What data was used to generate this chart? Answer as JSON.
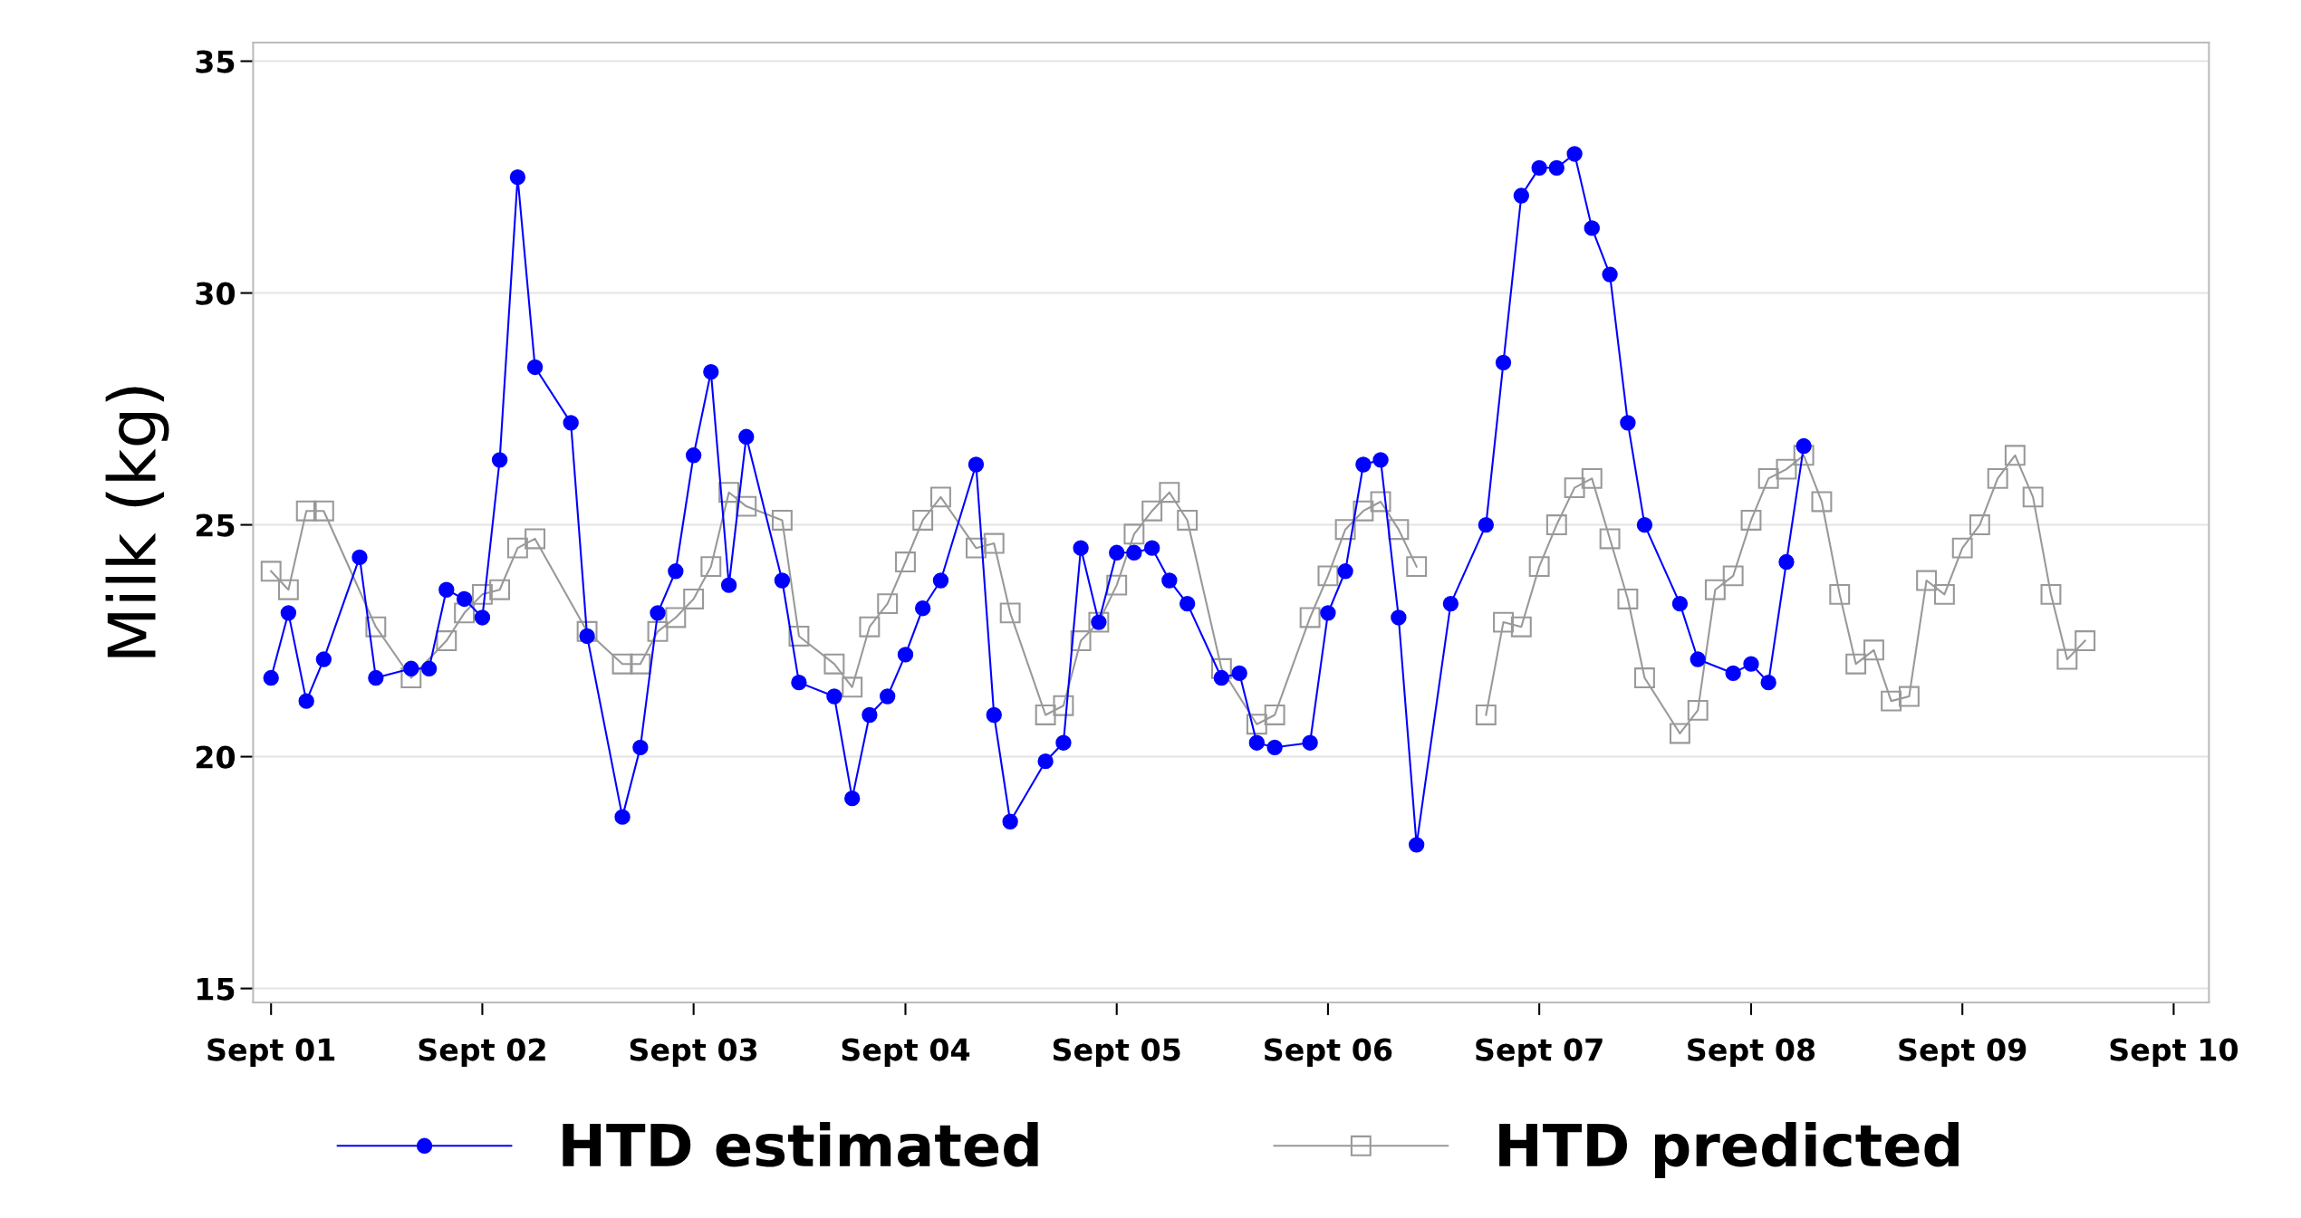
{
  "chart_data": {
    "type": "line",
    "ylabel": "Milk (kg)",
    "xlim": [
      "2001-08",
      "2010-11"
    ],
    "xticks": [
      {
        "value": "2001-09",
        "label": "Sept 01"
      },
      {
        "value": "2002-09",
        "label": "Sept 02"
      },
      {
        "value": "2003-09",
        "label": "Sept 03"
      },
      {
        "value": "2004-09",
        "label": "Sept 04"
      },
      {
        "value": "2005-09",
        "label": "Sept 05"
      },
      {
        "value": "2006-09",
        "label": "Sept 06"
      },
      {
        "value": "2007-09",
        "label": "Sept 07"
      },
      {
        "value": "2008-09",
        "label": "Sept 08"
      },
      {
        "value": "2009-09",
        "label": "Sept 09"
      },
      {
        "value": "2010-09",
        "label": "Sept 10"
      }
    ],
    "ylim": [
      14.7,
      35.4
    ],
    "yticks": [
      15,
      20,
      25,
      30,
      35
    ],
    "grid": "y",
    "legend": "bottom",
    "series": [
      {
        "name": "HTD estimated",
        "color": "#0000ff",
        "marker": "circle",
        "x": [
          "2001-09",
          "2001-10",
          "2001-11",
          "2001-12",
          "2002-02",
          "2002-03",
          "2002-05",
          "2002-06",
          "2002-07",
          "2002-08",
          "2002-09",
          "2002-10",
          "2002-11",
          "2002-12",
          "2003-02",
          "2003-03",
          "2003-05",
          "2003-06",
          "2003-07",
          "2003-08",
          "2003-09",
          "2003-10",
          "2003-11",
          "2003-12",
          "2004-02",
          "2004-03",
          "2004-05",
          "2004-06",
          "2004-07",
          "2004-08",
          "2004-09",
          "2004-10",
          "2004-11",
          "2005-01",
          "2005-02",
          "2005-03",
          "2005-05",
          "2005-06",
          "2005-07",
          "2005-08",
          "2005-09",
          "2005-10",
          "2005-11",
          "2005-12",
          "2006-01",
          "2006-03",
          "2006-04",
          "2006-05",
          "2006-06",
          "2006-08",
          "2006-09",
          "2006-10",
          "2006-11",
          "2006-12",
          "2007-01",
          "2007-02",
          "2007-04",
          "2007-06",
          "2007-07",
          "2007-08",
          "2007-09",
          "2007-10",
          "2007-11",
          "2007-12",
          "2008-01",
          "2008-02",
          "2008-03",
          "2008-05",
          "2008-06",
          "2008-08",
          "2008-09",
          "2008-10",
          "2008-11",
          "2008-12"
        ],
        "values": [
          21.7,
          23.1,
          21.2,
          22.1,
          24.3,
          21.7,
          21.9,
          21.9,
          23.6,
          23.4,
          23.0,
          26.4,
          32.5,
          28.4,
          27.2,
          22.6,
          18.7,
          20.2,
          23.1,
          24.0,
          26.5,
          28.3,
          23.7,
          26.9,
          23.8,
          21.6,
          21.3,
          19.1,
          20.9,
          21.3,
          22.2,
          23.2,
          23.8,
          26.3,
          20.9,
          18.6,
          19.9,
          20.3,
          24.5,
          22.9,
          24.4,
          24.4,
          24.5,
          23.8,
          23.3,
          21.7,
          21.8,
          20.3,
          20.2,
          20.3,
          23.1,
          24.0,
          26.3,
          26.4,
          23.0,
          18.1,
          23.3,
          25.0,
          28.5,
          32.1,
          32.7,
          32.7,
          33.0,
          31.4,
          30.4,
          27.2,
          25.0,
          23.3,
          22.1,
          21.8,
          22.0,
          21.6,
          24.2,
          26.7
        ]
      },
      {
        "name": "HTD predicted",
        "color": "#999999",
        "marker": "square",
        "x": [
          "2001-09",
          "2001-10",
          "2001-11",
          "2001-12",
          "2002-03",
          "2002-05",
          "2002-07",
          "2002-08",
          "2002-09",
          "2002-10",
          "2002-11",
          "2002-12",
          "2003-03",
          "2003-05",
          "2003-06",
          "2003-07",
          "2003-08",
          "2003-09",
          "2003-10",
          "2003-11",
          "2003-12",
          "2004-02",
          "2004-03",
          "2004-05",
          "2004-06",
          "2004-07",
          "2004-08",
          "2004-09",
          "2004-10",
          "2004-11",
          "2005-01",
          "2005-02",
          "2005-03",
          "2005-05",
          "2005-06",
          "2005-07",
          "2005-08",
          "2005-09",
          "2005-10",
          "2005-11",
          "2005-12",
          "2006-01",
          "2006-03",
          "2006-05",
          "2006-06",
          "2006-08",
          "2006-09",
          "2006-10",
          "2006-11",
          "2006-12",
          "2007-01",
          "2007-02",
          "2007-04",
          "2007-06",
          "2007-07",
          "2007-08",
          "2007-09",
          "2007-10",
          "2007-11",
          "2007-12",
          "2008-01",
          "2008-02",
          "2008-03",
          "2008-05",
          "2008-06",
          "2008-07",
          "2008-08",
          "2008-09",
          "2008-10",
          "2008-11",
          "2008-12",
          "2009-01",
          "2009-02",
          "2009-03",
          "2009-04",
          "2009-05",
          "2009-06",
          "2009-07",
          "2009-08",
          "2009-09",
          "2009-10",
          "2009-11",
          "2009-12",
          "2010-01",
          "2010-02",
          "2010-03",
          "2010-04"
        ],
        "values": [
          24.0,
          23.6,
          25.3,
          25.3,
          22.8,
          21.7,
          22.5,
          23.1,
          23.5,
          23.6,
          24.5,
          24.7,
          22.7,
          22.0,
          22.0,
          22.7,
          23.0,
          23.4,
          24.1,
          25.7,
          25.4,
          25.1,
          22.6,
          22.0,
          21.5,
          22.8,
          23.3,
          24.2,
          25.1,
          25.6,
          24.5,
          24.6,
          23.1,
          20.9,
          21.1,
          22.5,
          22.9,
          23.7,
          24.8,
          25.3,
          25.7,
          25.1,
          21.9,
          20.7,
          20.9,
          23.0,
          23.9,
          24.9,
          25.3,
          25.5,
          24.9,
          24.1,
          null,
          20.9,
          22.9,
          22.8,
          24.1,
          25.0,
          25.8,
          26.0,
          24.7,
          23.4,
          21.7,
          20.5,
          21.0,
          23.6,
          23.9,
          25.1,
          26.0,
          26.2,
          26.5,
          25.5,
          23.5,
          22.0,
          22.3,
          21.2,
          21.3,
          23.8,
          23.5,
          24.5,
          25.0,
          26.0,
          26.5,
          25.6,
          23.5,
          22.1,
          22.5
        ]
      }
    ]
  }
}
